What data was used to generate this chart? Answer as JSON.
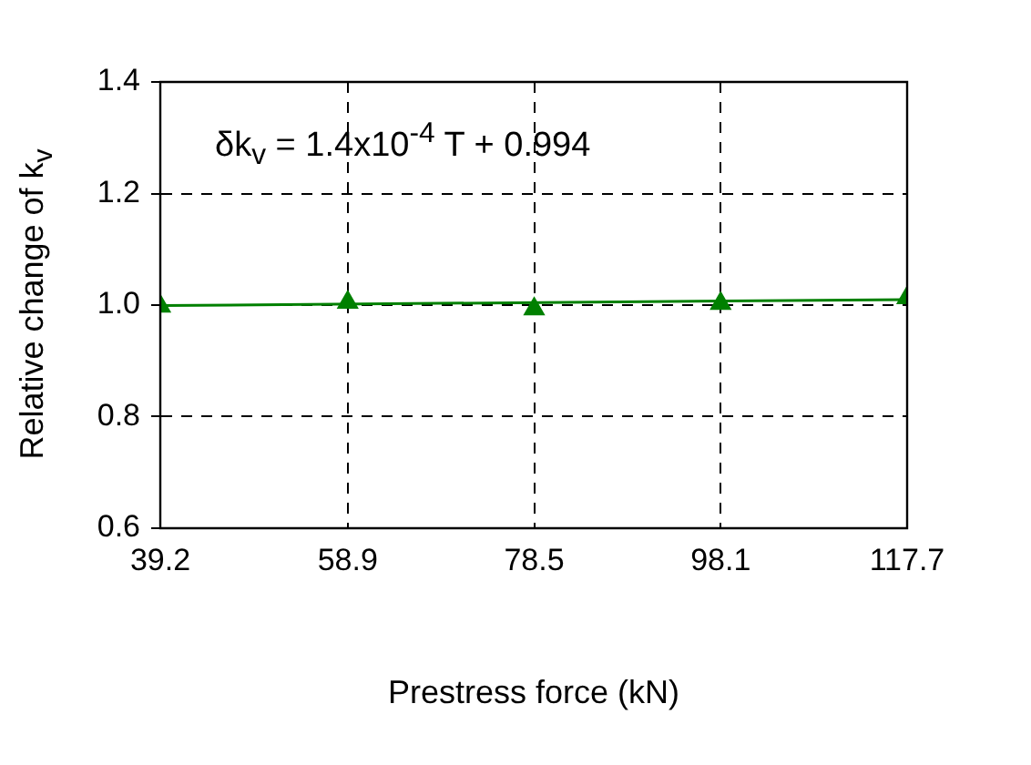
{
  "chart_data": {
    "type": "scatter",
    "xlabel": "Prestress force (kN)",
    "ylabel": "Relative change of k$_{v}$",
    "annotations": [
      "δk$_{v}$ = 1.4x10$^{-4}$ T + 0.994"
    ],
    "x": [
      39.2,
      58.9,
      78.5,
      98.1,
      117.7
    ],
    "series": [
      {
        "color": "#008000",
        "marker": "triangle",
        "values": [
          0.998,
          1.005,
          0.993,
          1.003,
          1.013
        ]
      },
      {
        "type": "line",
        "color": "#008000",
        "marker": "none",
        "line_style": "solid",
        "x": [
          39.2,
          117.7
        ],
        "values": [
          0.999,
          1.01
        ]
      }
    ],
    "xlim": [
      39.2,
      117.7
    ],
    "xticks": [
      39.2,
      58.9,
      78.5,
      98.1,
      117.7
    ],
    "ylim": [
      0.6,
      1.4
    ],
    "yticks": [
      {
        "value": 0.6,
        "label": "0.6"
      },
      {
        "value": 0.8,
        "label": "0.8"
      },
      {
        "value": 1,
        "label": "1.0"
      },
      {
        "value": 1.2,
        "label": "1.2"
      },
      {
        "value": 1.4,
        "label": "1.4"
      }
    ],
    "grid": true,
    "legend": false
  }
}
